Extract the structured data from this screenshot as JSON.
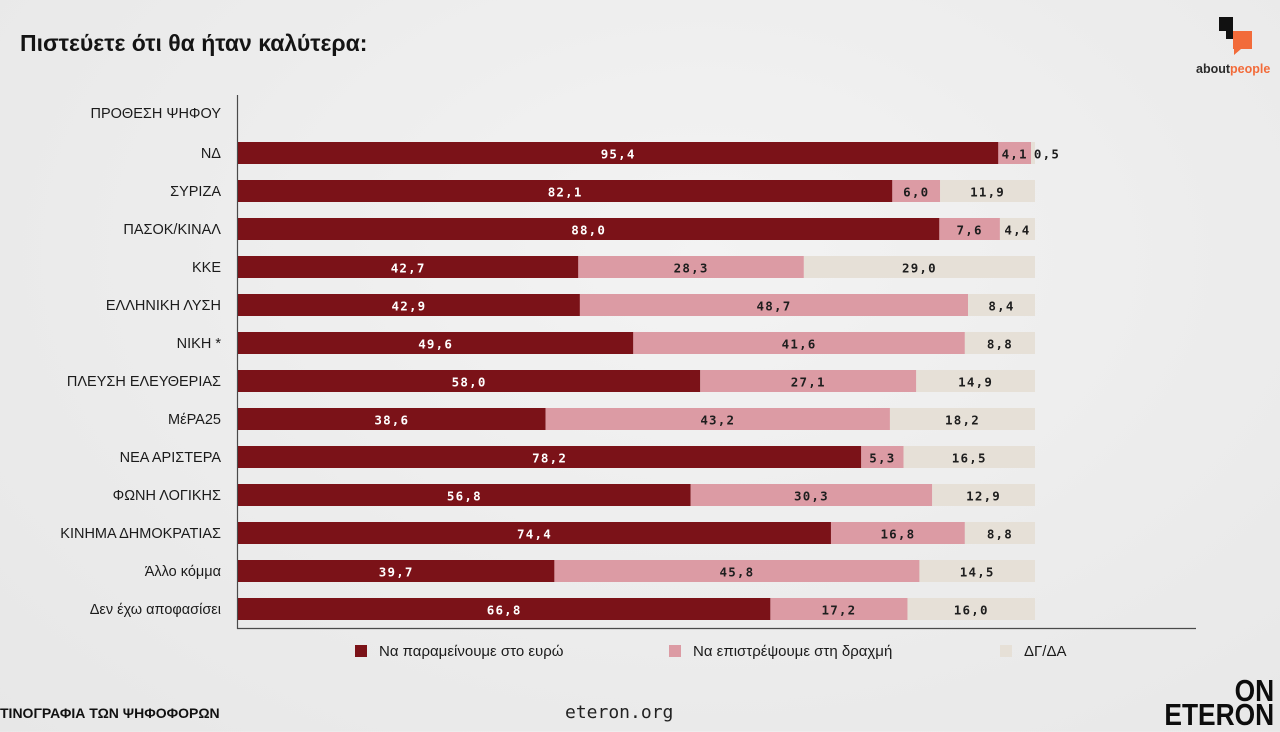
{
  "title": "Πιστεύετε ότι θα ήταν καλύτερα:",
  "brand": {
    "icon": "aboutpeople-logo-icon",
    "about": "about",
    "people": "people",
    "accent": "#f26b3a"
  },
  "chart_data": {
    "type": "bar",
    "stacked": true,
    "group_header": "ΠΡΟΘΕΣΗ ΨΗΦΟΥ",
    "categories": [
      "ΝΔ",
      "ΣΥΡΙΖΑ",
      "ΠΑΣΟΚ/ΚΙΝΑΛ",
      "ΚΚΕ",
      "ΕΛΛΗΝΙΚΗ ΛΥΣΗ",
      "ΝΙΚΗ *",
      "ΠΛΕΥΣΗ ΕΛΕΥΘΕΡΙΑΣ",
      "ΜέΡΑ25",
      "ΝΕΑ ΑΡΙΣΤΕΡΑ",
      "ΦΩΝΗ ΛΟΓΙΚΗΣ",
      "ΚΙΝΗΜΑ ΔΗΜΟΚΡΑΤΙΑΣ",
      "Άλλο κόμμα",
      "Δεν έχω αποφασίσει"
    ],
    "series": [
      {
        "name": "Να παραμείνουμε στο ευρώ",
        "color": "#7b1218",
        "values": [
          95.4,
          82.1,
          88.0,
          42.7,
          42.9,
          49.6,
          58.0,
          38.6,
          78.2,
          56.8,
          74.4,
          39.7,
          66.8
        ]
      },
      {
        "name": "Να επιστρέψουμε στη δραχμή",
        "color": "#dc9ba4",
        "values": [
          4.1,
          6.0,
          7.6,
          28.3,
          48.7,
          41.6,
          27.1,
          43.2,
          5.3,
          30.3,
          16.8,
          45.8,
          17.2
        ]
      },
      {
        "name": "ΔΓ/ΔΑ",
        "color": "#e6e0d7",
        "values": [
          0.5,
          11.9,
          4.4,
          29.0,
          8.4,
          8.8,
          14.9,
          18.2,
          16.5,
          12.9,
          8.8,
          14.5,
          16.0
        ]
      }
    ],
    "xlim": [
      0,
      100
    ]
  },
  "footer": {
    "left": "ΤΙΝΟΓΡΑΦΙΑ ΤΩΝ ΨΗΦΟΦΟΡΩΝ",
    "center": "eteron.org",
    "logo_line1": "ON",
    "logo_line2": "ETERON"
  }
}
